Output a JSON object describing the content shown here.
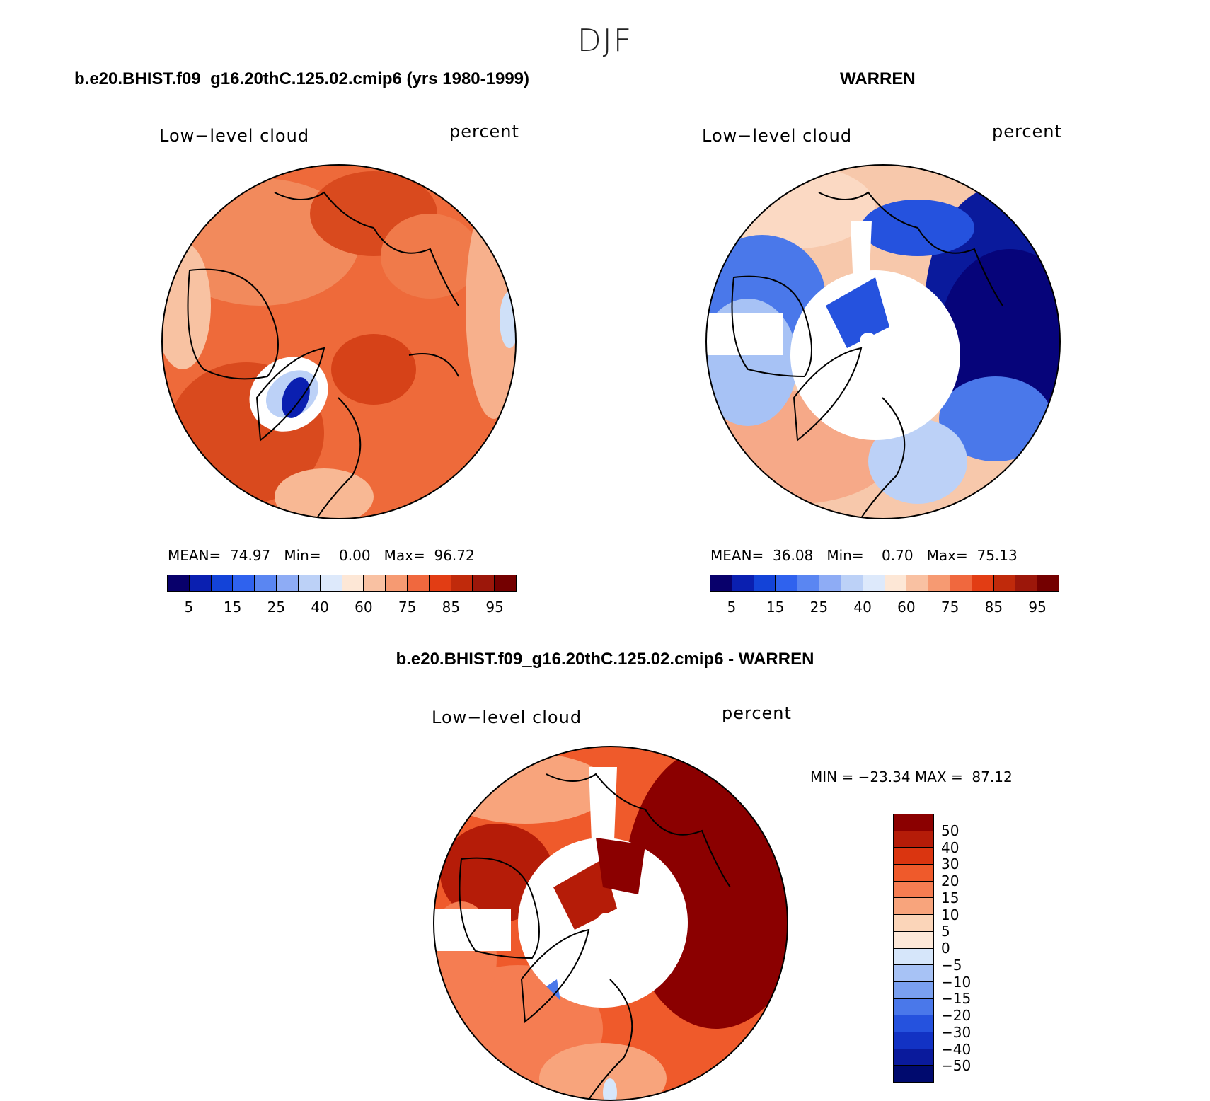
{
  "season": "DJF",
  "panels": [
    {
      "title": "b.e20.BHIST.f09_g16.20thC.125.02.cmip6 (yrs 1980-1999)",
      "left_label": "Low−level cloud",
      "right_label": "percent",
      "stats": {
        "mean_label": "MEAN=",
        "mean": "74.97",
        "min_label": "Min=",
        "min": "0.00",
        "max_label": "Max=",
        "max": "96.72"
      },
      "colorbar_ticks": [
        "5",
        "15",
        "25",
        "40",
        "60",
        "75",
        "85",
        "95"
      ]
    },
    {
      "title": "WARREN",
      "left_label": "Low−level cloud",
      "right_label": "percent",
      "stats": {
        "mean_label": "MEAN=",
        "mean": "36.08",
        "min_label": "Min=",
        "min": "0.70",
        "max_label": "Max=",
        "max": "75.13"
      },
      "colorbar_ticks": [
        "5",
        "15",
        "25",
        "40",
        "60",
        "75",
        "85",
        "95"
      ]
    }
  ],
  "diff_panel": {
    "title": "b.e20.BHIST.f09_g16.20thC.125.02.cmip6 - WARREN",
    "left_label": "Low−level cloud",
    "right_label": "percent",
    "minmax": "MIN = −23.34 MAX =  87.12",
    "colorbar_ticks": [
      "50",
      "40",
      "30",
      "20",
      "15",
      "10",
      "5",
      "0",
      "−5",
      "−10",
      "−15",
      "−20",
      "−30",
      "−40",
      "−50"
    ]
  },
  "colors": {
    "abs_scale": [
      "#08006b",
      "#0a1fb0",
      "#1343d8",
      "#2f62ee",
      "#5a86f2",
      "#8eacf5",
      "#bcd1f7",
      "#dde9fb",
      "#fde7d6",
      "#f9c1a2",
      "#f69a72",
      "#f0683e",
      "#e23d14",
      "#c02a0b",
      "#9c170a",
      "#740000"
    ],
    "diff_scale": [
      "#8b0000",
      "#b51c08",
      "#da3510",
      "#ef5a2b",
      "#f57d52",
      "#f8a47c",
      "#fbd5b9",
      "#fde8d8",
      "#d6e6fa",
      "#a7c2f5",
      "#7aa0f0",
      "#4a78ea",
      "#2552de",
      "#1232c4",
      "#0a1a9c",
      "#000a6e"
    ],
    "ocean_warm": "#ee6a3a",
    "ocean_cool": "#f7c8ab",
    "blue_mid": "#4a78ea",
    "blue_deep": "#06047a",
    "white_gap": "#ffffff",
    "coast": "#000000"
  }
}
